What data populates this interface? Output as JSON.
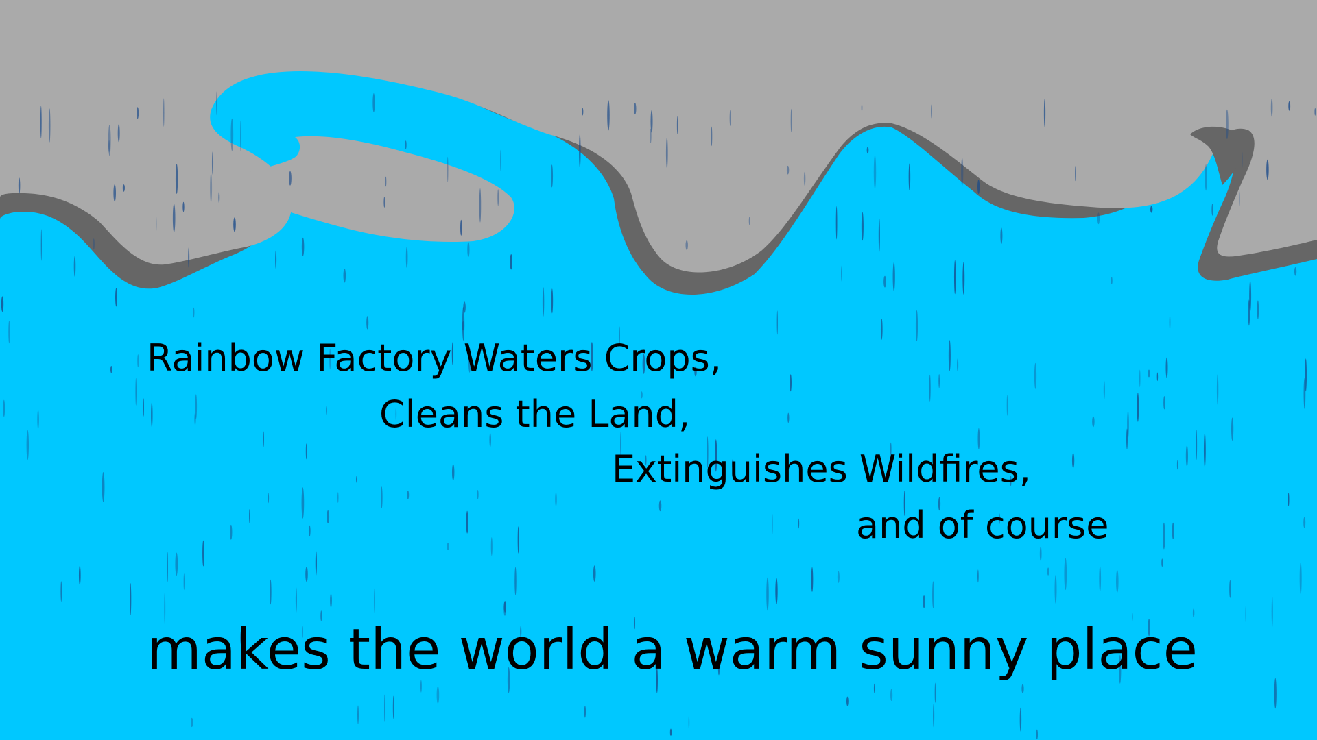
{
  "colors": {
    "water": "#00c8ff",
    "sky": "#aaaaaa",
    "wave_shadow": "#666666",
    "raindrop": "#1a4a8a",
    "text": "#000000"
  },
  "scene": {
    "description_icons": [
      "wave-shape",
      "raindrops"
    ]
  },
  "caption": {
    "line1": "Rainbow Factory Waters Crops,",
    "line2": "Cleans the Land,",
    "line3": "Extinguishes Wildfires,",
    "line4": "and of course",
    "headline": "makes the world a warm sunny place"
  }
}
